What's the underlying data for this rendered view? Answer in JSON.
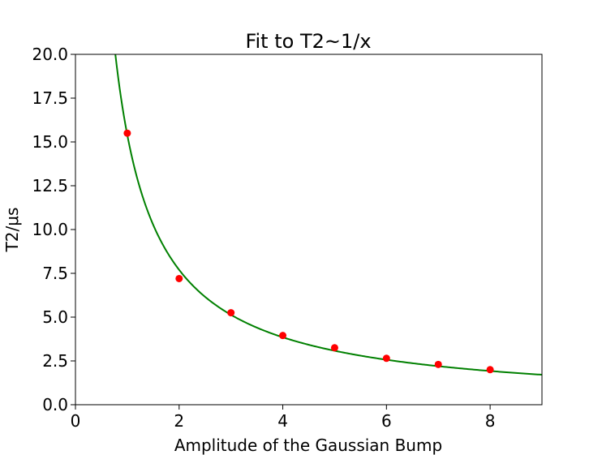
{
  "chart_data": {
    "type": "scatter",
    "title": "Fit to T2~1/x",
    "xlabel": "Amplitude of the Gaussian Bump",
    "ylabel": "T2/μs",
    "xlim": [
      0,
      9
    ],
    "ylim": [
      0,
      20
    ],
    "xticks": [
      0,
      2,
      4,
      6,
      8
    ],
    "xtick_labels": [
      "0",
      "2",
      "4",
      "6",
      "8"
    ],
    "yticks": [
      0,
      2.5,
      5,
      7.5,
      10,
      12.5,
      15,
      17.5,
      20
    ],
    "ytick_labels": [
      "0.0",
      "2.5",
      "5.0",
      "7.5",
      "10.0",
      "12.5",
      "15.0",
      "17.5",
      "20.0"
    ],
    "grid": false,
    "legend": "none",
    "series": [
      {
        "type": "scatter",
        "color": "#ff0000",
        "x": [
          1,
          2,
          3,
          4,
          5,
          6,
          7,
          8
        ],
        "y": [
          15.5,
          7.2,
          5.25,
          3.95,
          3.25,
          2.65,
          2.3,
          2.0
        ]
      },
      {
        "type": "line",
        "color": "#008000",
        "fit": "a/x",
        "a": 15.4,
        "x": [
          0.77,
          0.8,
          0.85,
          0.9,
          0.95,
          1.0,
          1.1,
          1.2,
          1.3,
          1.4,
          1.5,
          1.6,
          1.8,
          2.0,
          2.2,
          2.4,
          2.6,
          2.8,
          3.0,
          3.3,
          3.6,
          4.0,
          4.5,
          5.0,
          5.5,
          6.0,
          6.5,
          7.0,
          7.5,
          8.0,
          8.5,
          9.0
        ],
        "y": [
          20.0,
          19.25,
          18.12,
          17.11,
          16.21,
          15.4,
          14.0,
          12.83,
          11.85,
          11.0,
          10.27,
          9.63,
          8.56,
          7.7,
          7.0,
          6.42,
          5.92,
          5.5,
          5.13,
          4.67,
          4.28,
          3.85,
          3.42,
          3.08,
          2.8,
          2.57,
          2.37,
          2.2,
          2.05,
          1.93,
          1.81,
          1.71
        ]
      }
    ]
  }
}
